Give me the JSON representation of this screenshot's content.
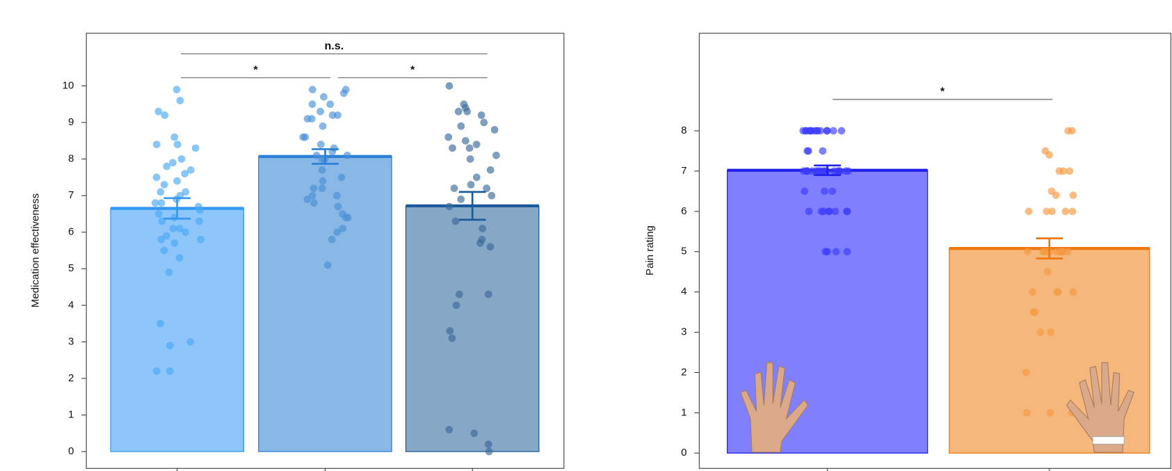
{
  "chart_data": [
    {
      "type": "bar",
      "y_label": "Medication effectiveness",
      "categories": [
        null,
        null,
        null
      ],
      "values": [
        6.65,
        8.07,
        6.72
      ],
      "errors": [
        0.28,
        0.2,
        0.38
      ],
      "colors": [
        "#8ec5fb",
        "#8ab8e6",
        "#87a7c7"
      ],
      "edge_colors": [
        "#3399f0",
        "#2a7fd6",
        "#1a5a99"
      ],
      "point_colors": [
        "#4aa8f5",
        "#4a90d6",
        "#3a6a9a"
      ],
      "points": [
        [
          9.9,
          9.6,
          9.3,
          9.2,
          8.6,
          8.4,
          8.4,
          8.3,
          8.0,
          7.9,
          7.8,
          7.7,
          7.6,
          7.5,
          7.4,
          7.3,
          7.1,
          7.1,
          7.0,
          6.9,
          6.8,
          6.8,
          6.7,
          6.6,
          6.5,
          6.4,
          6.3,
          6.3,
          6.1,
          6.1,
          6.0,
          5.9,
          5.8,
          5.8,
          5.7,
          5.5,
          5.3,
          4.9,
          3.5,
          3.0,
          2.9,
          2.2,
          2.2
        ],
        [
          9.9,
          9.9,
          9.8,
          9.7,
          9.5,
          9.5,
          9.3,
          9.2,
          9.2,
          9.1,
          9.1,
          8.9,
          8.6,
          8.6,
          8.4,
          8.3,
          8.2,
          8.1,
          8.1,
          8.0,
          8.0,
          7.7,
          7.5,
          7.4,
          7.2,
          7.2,
          7.0,
          7.0,
          6.9,
          6.8,
          6.7,
          6.5,
          6.4,
          6.4,
          6.1,
          6.0,
          5.8,
          5.1
        ],
        [
          10,
          9.5,
          9.4,
          9.3,
          9.3,
          9.2,
          9.0,
          8.9,
          8.8,
          8.6,
          8.5,
          8.4,
          8.3,
          8.3,
          8.1,
          8.0,
          7.7,
          7.5,
          7.3,
          7.2,
          7.2,
          7.0,
          6.9,
          6.7,
          6.3,
          6.1,
          5.8,
          5.7,
          5.6,
          4.3,
          4.3,
          4.0,
          3.3,
          3.1,
          0.6,
          0.5,
          0.2,
          0.0
        ]
      ],
      "ylim": [
        -0.45,
        11.45
      ],
      "yticks": [
        0,
        1,
        2,
        3,
        4,
        5,
        6,
        7,
        8,
        9,
        10
      ],
      "annotations": [
        "n.s.",
        "*",
        "*"
      ]
    },
    {
      "type": "bar",
      "y_label": "Pain rating",
      "categories": [
        null,
        null
      ],
      "values": [
        7.02,
        5.08
      ],
      "errors": [
        0.12,
        0.25
      ],
      "colors": [
        "#8080ff",
        "#f5b77c"
      ],
      "edge_colors": [
        "#2020ee",
        "#ee7710"
      ],
      "point_colors": [
        "#3a3aff",
        "#f59a40"
      ],
      "points": [
        [
          8,
          8,
          8,
          8,
          8,
          8,
          8,
          8,
          8,
          8,
          8,
          8,
          8,
          8,
          7.5,
          7.5,
          7.5,
          7,
          7,
          7,
          7,
          7,
          7,
          7,
          7,
          7,
          7,
          7,
          7,
          7,
          7,
          7,
          7,
          7,
          7,
          6.5,
          6.5,
          6.5,
          6,
          6,
          6,
          6,
          6,
          6,
          6,
          6,
          5,
          5,
          5,
          5
        ],
        [
          8,
          8,
          7.5,
          7.4,
          7,
          7,
          7,
          6.5,
          6.4,
          6.4,
          6,
          6,
          6,
          6,
          6,
          5,
          5,
          5,
          5,
          5,
          5,
          5,
          5,
          5,
          5,
          4.5,
          4,
          4,
          4,
          4,
          3.5,
          3.5,
          3,
          3,
          2,
          1,
          1,
          1
        ]
      ],
      "ylim": [
        -0.37,
        10.43
      ],
      "yticks": [
        0,
        1,
        2,
        3,
        4,
        5,
        6,
        7,
        8
      ],
      "annotations": [
        "*"
      ]
    }
  ]
}
